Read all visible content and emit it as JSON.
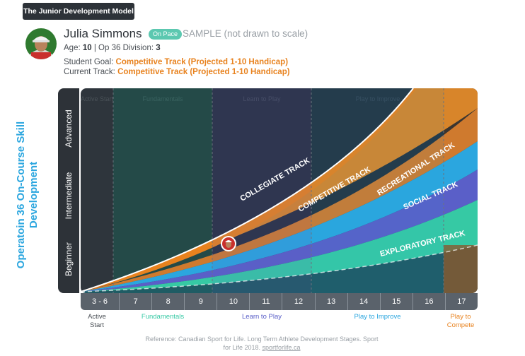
{
  "header": {
    "model_title": "The Junior Development Model"
  },
  "student": {
    "name": "Julia Simmons",
    "status_badge": "On Pace",
    "sample_note": "SAMPLE (not drawn to scale)",
    "age_label": "Age:",
    "age_value": "10",
    "division_label": "| Op 36 Division:",
    "division_value": "3",
    "goal_label": "Student Goal:",
    "goal_value": "Competitive Track (Projected 1-10 Handicap)",
    "current_label": "Current Track:",
    "current_value": "Competitive Track (Projected 1-10 Handicap)"
  },
  "chart": {
    "y_axis_title": "Operatoin 36 On-Course Skill Development",
    "y_levels": [
      "Advanced",
      "Intermediate",
      "Beginner"
    ],
    "faded_stage_labels": [
      "Active Start",
      "Fundamentals",
      "Learn to Play",
      "Play to Improve"
    ],
    "tracks": [
      {
        "name": "COLLEGIATE TRACK",
        "color": "#e8821e"
      },
      {
        "name": "COMPETITIVE TRACK",
        "color": "#e0782a"
      },
      {
        "name": "RECREATIONAL TRACK",
        "color": "#2ba6df"
      },
      {
        "name": "SOCIAL TRACK",
        "color": "#5a5fc8"
      },
      {
        "name": "EXPLORATORY TRACK",
        "color": "#36c9a4"
      }
    ],
    "x_ages": [
      "3 - 6",
      "7",
      "8",
      "9",
      "10",
      "11",
      "12",
      "13",
      "14",
      "15",
      "16",
      "17"
    ],
    "stages": [
      {
        "label": "Active Start",
        "color": "#4a4f55"
      },
      {
        "label": "Fundamentals",
        "color": "#36c9a4"
      },
      {
        "label": "Learn to Play",
        "color": "#5a5fc8"
      },
      {
        "label": "Play to Improve",
        "color": "#2ba6df"
      },
      {
        "label": "Play to Compete",
        "color": "#e8821e"
      }
    ]
  },
  "reference": {
    "text": "Reference: Canadian Sport for Life. Long Term Athlete Development Stages. Sport for Life 2018.",
    "link": "sportforlife.ca"
  }
}
